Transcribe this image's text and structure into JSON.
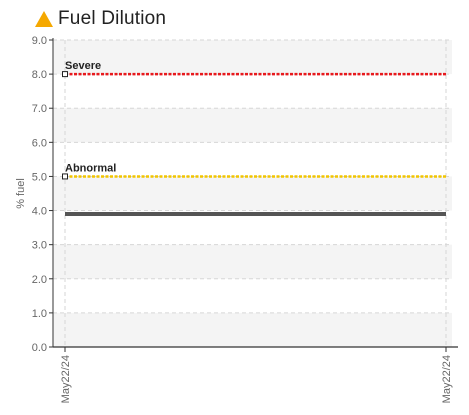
{
  "chart_data": {
    "type": "line",
    "title": "Fuel Dilution",
    "title_icon": "warning-triangle-icon",
    "ylabel": "% fuel",
    "xlabel": "",
    "ylim": [
      0,
      9
    ],
    "y_ticks": [
      "0.0",
      "1.0",
      "2.0",
      "3.0",
      "4.0",
      "5.0",
      "6.0",
      "7.0",
      "8.0",
      "9.0"
    ],
    "x_ticks": [
      "May22/24",
      "May22/24"
    ],
    "grid": true,
    "series": [
      {
        "values": [
          3.9,
          3.9
        ],
        "color": "#555555"
      }
    ],
    "thresholds": [
      {
        "name": "Severe",
        "value": 8.0,
        "color": "#e8191d"
      },
      {
        "name": "Abnormal",
        "value": 5.0,
        "color": "#f2c500"
      }
    ],
    "colors": {
      "warning_icon": "#f5a800",
      "band": "#f4f4f4"
    }
  }
}
